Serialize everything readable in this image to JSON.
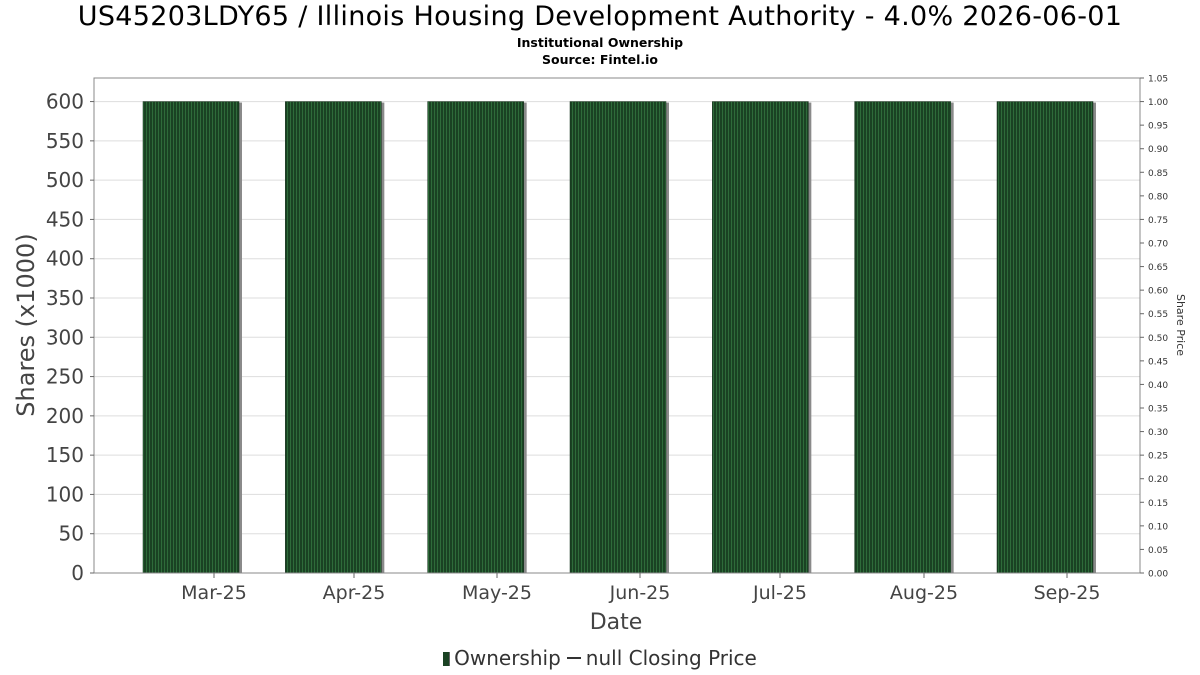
{
  "chart_data": {
    "type": "bar",
    "title": "US45203LDY65 / Illinois Housing Development Authority - 4.0% 2026-06-01",
    "subtitle": "Institutional Ownership",
    "source": "Source: Fintel.io",
    "xlabel": "Date",
    "ylabel": "Shares (x1000)",
    "y2label": "Share Price",
    "categories": [
      "Mar-25",
      "Apr-25",
      "May-25",
      "Jun-25",
      "Jul-25",
      "Aug-25",
      "Sep-25"
    ],
    "series": [
      {
        "name": "Ownership",
        "values": [
          600,
          600,
          600,
          600,
          600,
          600,
          600
        ]
      }
    ],
    "ylim": [
      0,
      630
    ],
    "yticks": [
      "0",
      "50",
      "100",
      "150",
      "200",
      "250",
      "300",
      "350",
      "400",
      "450",
      "500",
      "550",
      "600"
    ],
    "y2lim": [
      0,
      1.05
    ],
    "y2ticks": [
      "0.00",
      "0.05",
      "0.10",
      "0.15",
      "0.20",
      "0.25",
      "0.30",
      "0.35",
      "0.40",
      "0.45",
      "0.50",
      "0.55",
      "0.60",
      "0.65",
      "0.70",
      "0.75",
      "0.80",
      "0.85",
      "0.90",
      "0.95",
      "1.00",
      "1.05"
    ],
    "grid": true,
    "colors": {
      "bar": "#1a4223",
      "bar_stripe": "#2e6b3a",
      "bar_shadow": "#8a8a8a",
      "grid": "#dddddd"
    },
    "legend": {
      "position": "bottom",
      "items": [
        {
          "label": "Ownership",
          "kind": "bar"
        },
        {
          "label": "null Closing Price",
          "kind": "line"
        }
      ]
    }
  }
}
